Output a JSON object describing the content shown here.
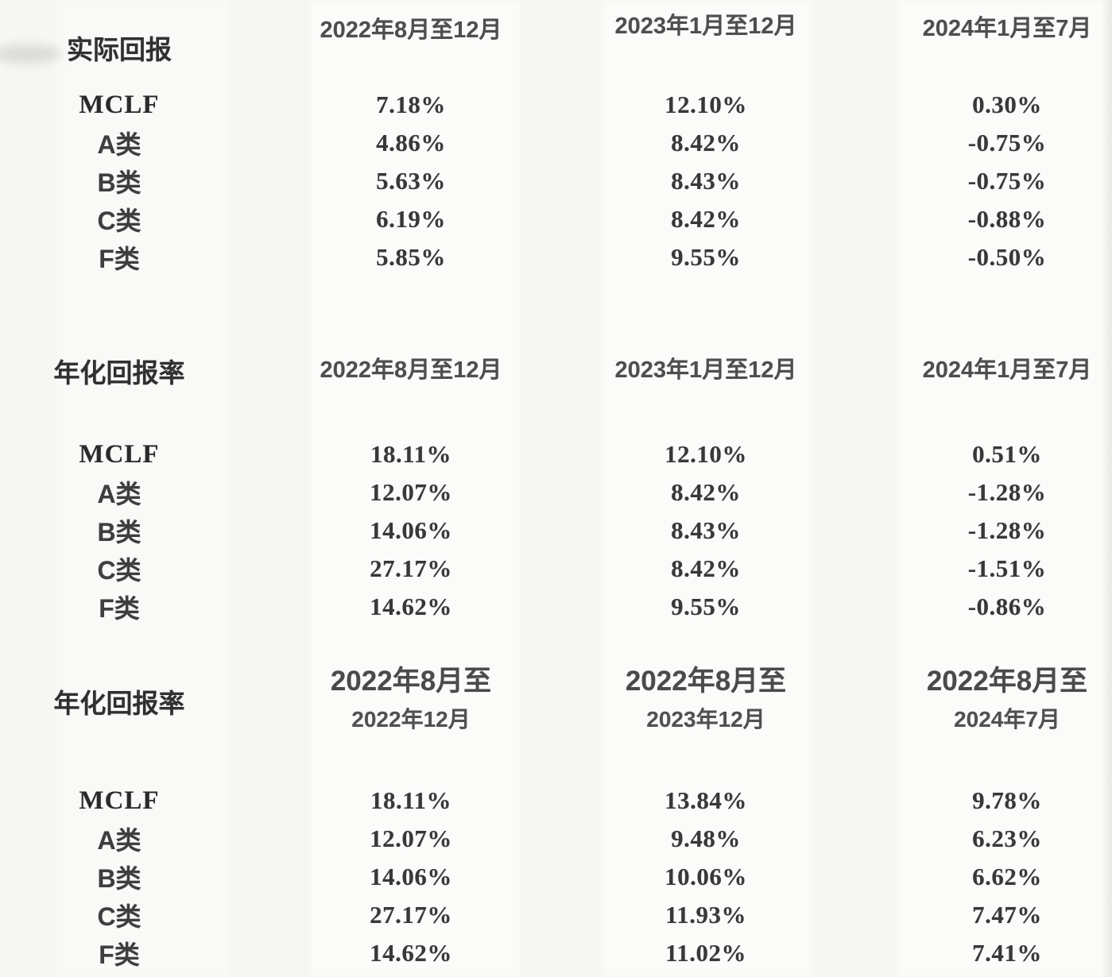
{
  "page": {
    "background_color": "#f6f6f3",
    "text_color": "#383838",
    "header_color": "#4e4e4e"
  },
  "tables": [
    {
      "section_label": "实际回报",
      "headers": [
        "2022年8月至12月",
        "2023年1月至12月",
        "2024年1月至7月"
      ],
      "rows": [
        {
          "label": "MCLF",
          "values": [
            "7.18%",
            "12.10%",
            "0.30%"
          ]
        },
        {
          "label": "A类",
          "values": [
            "4.86%",
            "8.42%",
            "-0.75%"
          ]
        },
        {
          "label": "B类",
          "values": [
            "5.63%",
            "8.43%",
            "-0.75%"
          ]
        },
        {
          "label": "C类",
          "values": [
            "6.19%",
            "8.42%",
            "-0.88%"
          ]
        },
        {
          "label": "F类",
          "values": [
            "5.85%",
            "9.55%",
            "-0.50%"
          ]
        }
      ]
    },
    {
      "section_label": "年化回报率",
      "headers": [
        "2022年8月至12月",
        "2023年1月至12月",
        "2024年1月至7月"
      ],
      "rows": [
        {
          "label": "MCLF",
          "values": [
            "18.11%",
            "12.10%",
            "0.51%"
          ]
        },
        {
          "label": "A类",
          "values": [
            "12.07%",
            "8.42%",
            "-1.28%"
          ]
        },
        {
          "label": "B类",
          "values": [
            "14.06%",
            "8.43%",
            "-1.28%"
          ]
        },
        {
          "label": "C类",
          "values": [
            "27.17%",
            "8.42%",
            "-1.51%"
          ]
        },
        {
          "label": "F类",
          "values": [
            "14.62%",
            "9.55%",
            "-0.86%"
          ]
        }
      ]
    },
    {
      "section_label": "年化回报率",
      "headers": [
        {
          "line1": "2022年8月至",
          "line2": "2022年12月"
        },
        {
          "line1": "2022年8月至",
          "line2": "2023年12月"
        },
        {
          "line1": "2022年8月至",
          "line2": "2024年7月"
        }
      ],
      "rows": [
        {
          "label": "MCLF",
          "values": [
            "18.11%",
            "13.84%",
            "9.78%"
          ]
        },
        {
          "label": "A类",
          "values": [
            "12.07%",
            "9.48%",
            "6.23%"
          ]
        },
        {
          "label": "B类",
          "values": [
            "14.06%",
            "10.06%",
            "6.62%"
          ]
        },
        {
          "label": "C类",
          "values": [
            "27.17%",
            "11.93%",
            "7.47%"
          ]
        },
        {
          "label": "F类",
          "values": [
            "14.62%",
            "11.02%",
            "7.41%"
          ]
        }
      ]
    }
  ]
}
